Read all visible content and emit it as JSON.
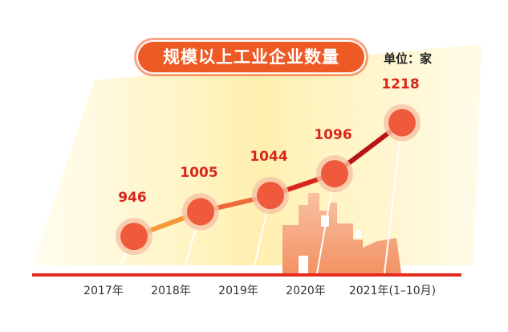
{
  "header": {
    "title": "规模以上工业企业数量",
    "unit": "单位：家"
  },
  "colors": {
    "accent": "#ee5a24",
    "value_label": "#d9261c",
    "baseline": "#e52b1e",
    "marker": "#f05a3c",
    "band": "#fff3b8"
  },
  "chart_data": {
    "type": "line",
    "title": "规模以上工业企业数量",
    "ylabel": "单位：家",
    "categories": [
      "2017年",
      "2018年",
      "2019年",
      "2020年",
      "2021年(1–10月)"
    ],
    "series": [
      {
        "values": [
          946,
          1005,
          1044,
          1096,
          1218
        ]
      }
    ],
    "ylim": [
      800,
      1300
    ],
    "grid": false,
    "legend": "none"
  }
}
